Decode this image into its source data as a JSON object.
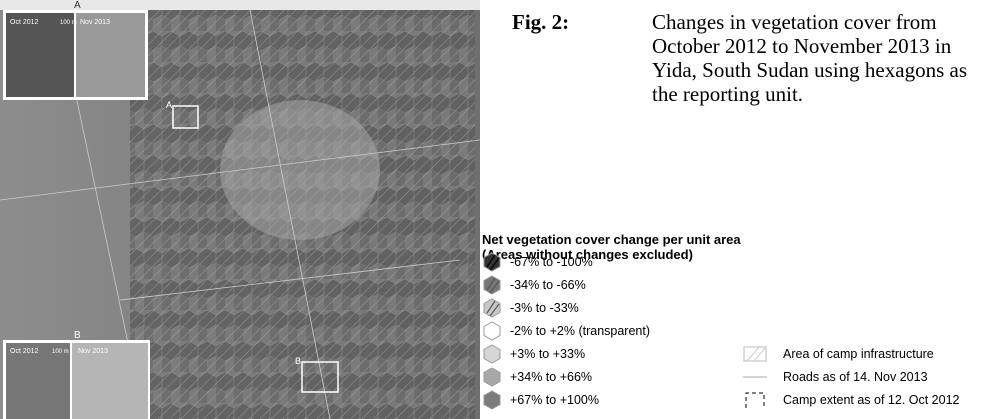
{
  "caption": {
    "label": "Fig. 2:",
    "text": "Changes in vegetation cover from October 2012 to November 2013 in Yida, South Sudan using hexagons as the reporting unit."
  },
  "legend": {
    "title": [
      "Net vegetation cover change per unit area",
      "(Areas without changes excluded)"
    ],
    "items": [
      "-67% to -100%",
      "-34% to -66%",
      "-3% to -33%",
      "-2% to +2% (transparent)",
      "+3% to +33%",
      "+34% to +66%",
      "+67% to +100%"
    ],
    "other": [
      "Area of camp infrastructure",
      "Roads as of 14. Nov 2013",
      "Camp extent as of 12. Oct 2012"
    ]
  },
  "map": {
    "insets": [
      {
        "marker": "A",
        "before": "Oct 2012",
        "after": "Nov 2013",
        "scale": "100 m"
      },
      {
        "marker": "B",
        "before": "Oct 2012",
        "after": "Nov 2013",
        "scale": "100 m"
      }
    ]
  }
}
